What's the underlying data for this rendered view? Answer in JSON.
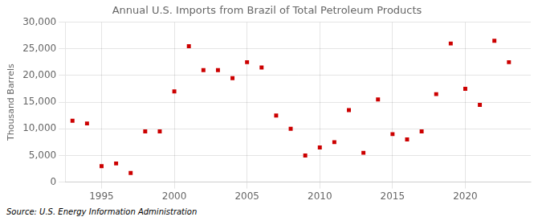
{
  "chart_data": {
    "type": "scatter",
    "title": "Annual U.S. Imports from Brazil of Total Petroleum Products",
    "ylabel": "Thousand Barrels",
    "source": "Source: U.S. Energy Information Administration",
    "x": [
      1993,
      1994,
      1995,
      1996,
      1997,
      1998,
      1999,
      2000,
      2001,
      2002,
      2003,
      2004,
      2005,
      2006,
      2007,
      2008,
      2009,
      2010,
      2011,
      2012,
      2013,
      2014,
      2015,
      2016,
      2017,
      2018,
      2019,
      2020,
      2021,
      2022,
      2023
    ],
    "values": [
      11500,
      11000,
      3000,
      3500,
      1700,
      9500,
      9500,
      17000,
      25500,
      21000,
      21000,
      19500,
      22500,
      21500,
      12500,
      10000,
      5000,
      6500,
      7500,
      13500,
      5500,
      15500,
      9000,
      8000,
      9500,
      16500,
      26000,
      17500,
      14500,
      26500,
      22500
    ],
    "color": "#cc0000",
    "marker": "square",
    "xlim": [
      1992.5,
      2024.5
    ],
    "xticks": [
      1995,
      2000,
      2005,
      2010,
      2015,
      2020
    ],
    "ylim": [
      0,
      30000
    ],
    "yticks": [
      0,
      {
        "value": 5000,
        "label": "5,000"
      },
      {
        "value": 10000,
        "label": "10,000"
      },
      {
        "value": 15000,
        "label": "15,000"
      },
      {
        "value": 20000,
        "label": "20,000"
      },
      {
        "value": 25000,
        "label": "25,000"
      },
      {
        "value": 30000,
        "label": "30,000"
      }
    ],
    "grid": true
  }
}
